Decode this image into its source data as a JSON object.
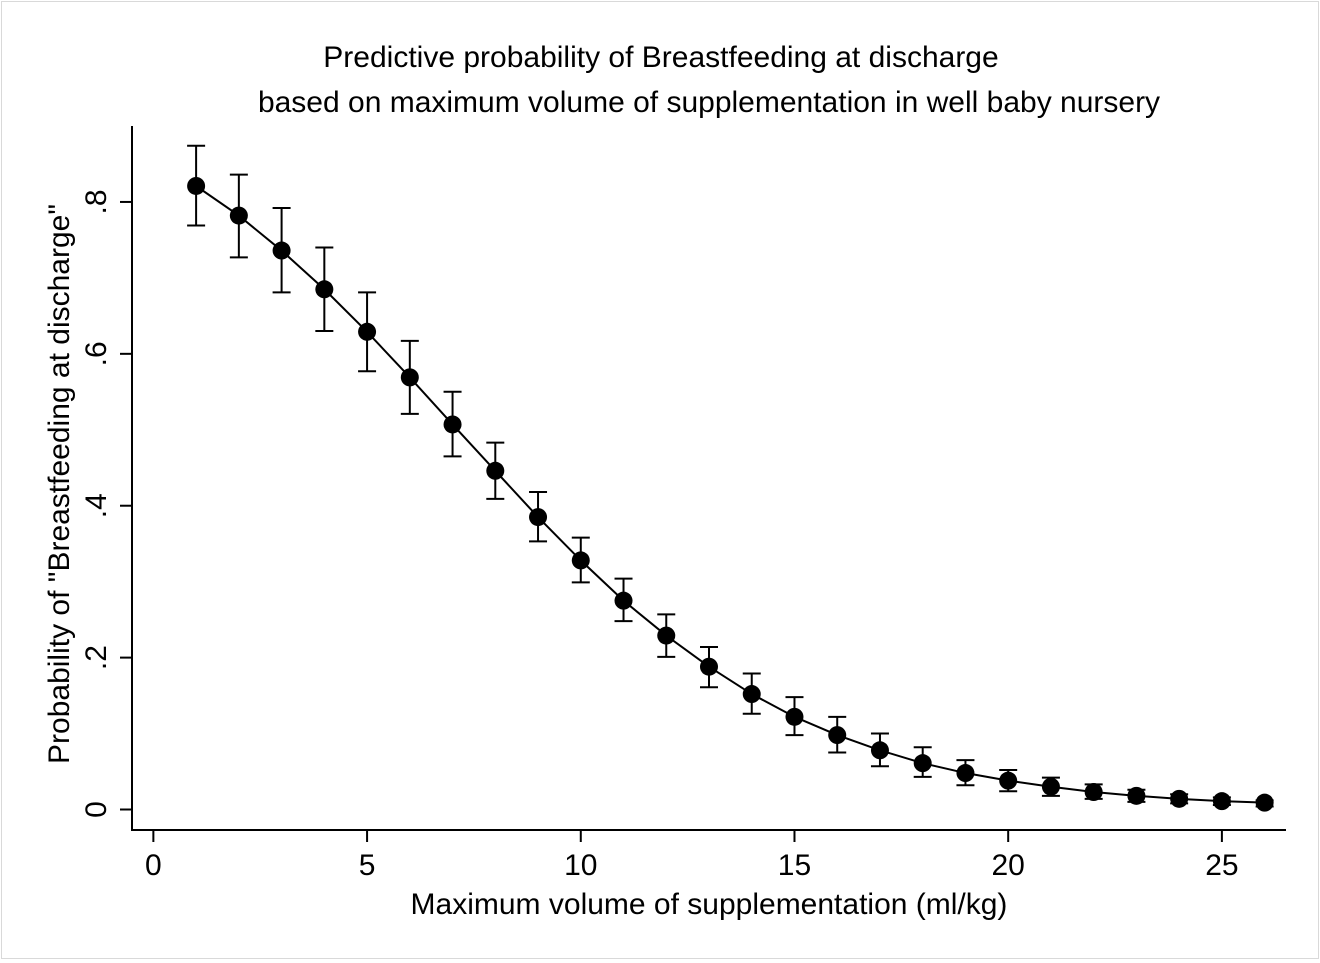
{
  "chart_data": {
    "type": "line",
    "title": "Predictive probability of Breastfeeding at discharge",
    "subtitle": "based on maximum volume of supplementation in well baby nursery",
    "xlabel": "Maximum volume of supplementation (ml/kg)",
    "ylabel": "Probability of \"Breastfeeding at discharge\"",
    "xlim": [
      -0.5,
      26.5
    ],
    "ylim": [
      -0.027,
      0.9
    ],
    "x_ticks": [
      0,
      5,
      10,
      15,
      20,
      25
    ],
    "x_tick_labels": [
      "0",
      "5",
      "10",
      "15",
      "20",
      "25"
    ],
    "y_ticks": [
      0,
      0.2,
      0.4,
      0.6,
      0.8
    ],
    "y_tick_labels": [
      "0",
      ".2",
      ".4",
      ".6",
      ".8"
    ],
    "grid": false,
    "legend": "none",
    "series_color": "#000000",
    "error_bars": "confidence interval",
    "x": [
      1,
      2,
      3,
      4,
      5,
      6,
      7,
      8,
      9,
      10,
      11,
      12,
      13,
      14,
      15,
      16,
      17,
      18,
      19,
      20,
      21,
      22,
      23,
      24,
      25,
      26
    ],
    "y": [
      0.821,
      0.782,
      0.736,
      0.685,
      0.629,
      0.569,
      0.507,
      0.446,
      0.385,
      0.328,
      0.275,
      0.229,
      0.188,
      0.152,
      0.122,
      0.098,
      0.078,
      0.061,
      0.048,
      0.038,
      0.03,
      0.023,
      0.018,
      0.014,
      0.011,
      0.009
    ],
    "ci_lower": [
      0.769,
      0.727,
      0.681,
      0.63,
      0.577,
      0.521,
      0.465,
      0.409,
      0.353,
      0.299,
      0.248,
      0.201,
      0.161,
      0.126,
      0.098,
      0.075,
      0.057,
      0.043,
      0.032,
      0.024,
      0.018,
      0.014,
      0.01,
      0.008,
      0.006,
      0.004
    ],
    "ci_upper": [
      0.874,
      0.836,
      0.792,
      0.74,
      0.681,
      0.617,
      0.55,
      0.483,
      0.418,
      0.358,
      0.304,
      0.257,
      0.214,
      0.179,
      0.148,
      0.122,
      0.1,
      0.082,
      0.065,
      0.052,
      0.042,
      0.033,
      0.026,
      0.02,
      0.016,
      0.012
    ]
  }
}
